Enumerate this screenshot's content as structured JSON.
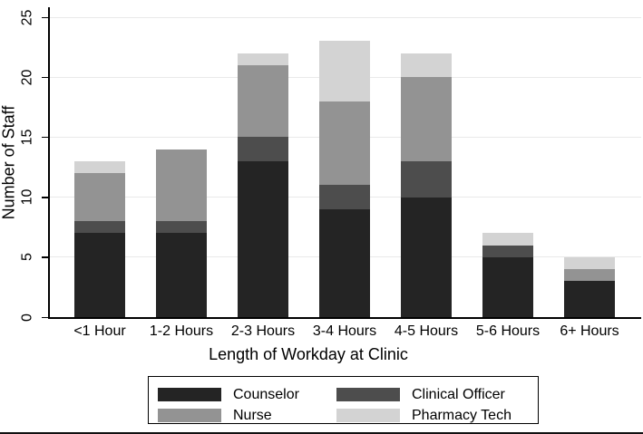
{
  "chart_data": {
    "type": "bar",
    "stacked": true,
    "title": "",
    "xlabel": "Length of Workday at Clinic",
    "ylabel": "Number of Staff",
    "categories": [
      "<1 Hour",
      "1-2 Hours",
      "2-3 Hours",
      "3-4 Hours",
      "4-5 Hours",
      "5-6 Hours",
      "6+ Hours"
    ],
    "series": [
      {
        "name": "Counselor",
        "color": "#242424",
        "values": [
          7,
          7,
          13,
          9,
          10,
          5,
          3
        ]
      },
      {
        "name": "Clinical Officer",
        "color": "#4d4d4d",
        "values": [
          1,
          1,
          2,
          2,
          3,
          1,
          0
        ]
      },
      {
        "name": "Nurse",
        "color": "#939393",
        "values": [
          4,
          6,
          6,
          7,
          7,
          0,
          1
        ]
      },
      {
        "name": "Pharmacy Tech",
        "color": "#d3d3d3",
        "values": [
          1,
          0,
          1,
          5,
          2,
          1,
          1
        ]
      }
    ],
    "stack_totals": [
      13,
      14,
      22,
      23,
      22,
      7,
      5
    ],
    "ylim": [
      0,
      25
    ],
    "yticks": [
      0,
      5,
      10,
      15,
      20,
      25
    ],
    "grid": true,
    "legend_position": "bottom-boxed",
    "legend_order": [
      "Counselor",
      "Clinical Officer",
      "Nurse",
      "Pharmacy Tech"
    ],
    "axis_color": "#000000",
    "gridline_color": "#e9e9e9"
  }
}
